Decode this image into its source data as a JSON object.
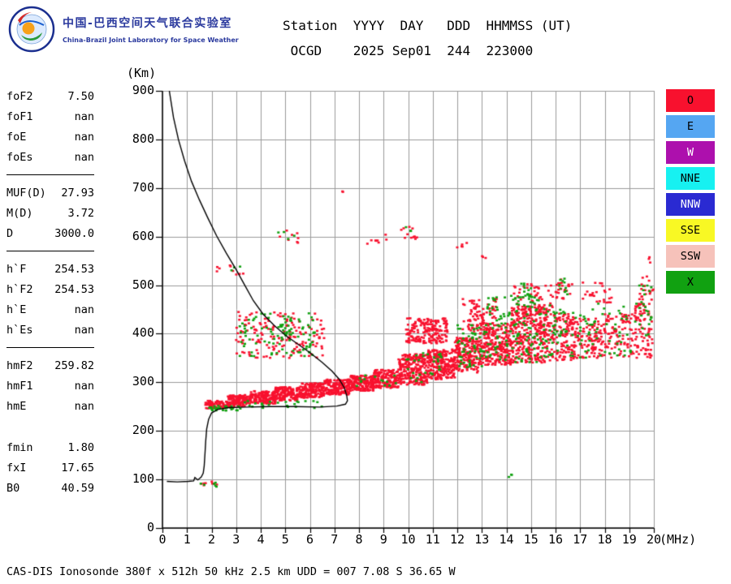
{
  "header": {
    "logo": {
      "title_cn": "中国-巴西空间天气联合实验室",
      "subtitle_en": "China-Brazil Joint Laboratory for Space Weather"
    },
    "station_line1": "Station  YYYY  DAY   DDD  HHMMSS (UT)",
    "station_line2": " OCGD    2025 Sep01  244  223000"
  },
  "params": {
    "groups": [
      {
        "divider_before": false,
        "rows": [
          {
            "label": "foF2",
            "value": "7.50"
          },
          {
            "label": "foF1",
            "value": "nan"
          },
          {
            "label": "foE",
            "value": "nan"
          },
          {
            "label": "foEs",
            "value": "nan"
          }
        ]
      },
      {
        "divider_before": true,
        "rows": [
          {
            "label": "MUF(D)",
            "value": "27.93"
          },
          {
            "label": "M(D)",
            "value": "3.72"
          },
          {
            "label": "D",
            "value": "3000.0"
          }
        ]
      },
      {
        "divider_before": true,
        "rows": [
          {
            "label": "h`F",
            "value": "254.53"
          },
          {
            "label": "h`F2",
            "value": "254.53"
          },
          {
            "label": "h`E",
            "value": "nan"
          },
          {
            "label": "h`Es",
            "value": "nan"
          }
        ]
      },
      {
        "divider_before": true,
        "rows": [
          {
            "label": "hmF2",
            "value": "259.82"
          },
          {
            "label": "hmF1",
            "value": "nan"
          },
          {
            "label": "hmE",
            "value": "nan"
          }
        ]
      },
      {
        "divider_before": false,
        "rows": [
          {
            "label": "fmin",
            "value": "1.80"
          },
          {
            "label": "fxI",
            "value": "17.65"
          },
          {
            "label": "B0",
            "value": "40.59"
          }
        ]
      }
    ]
  },
  "legend": {
    "items": [
      {
        "label": "O",
        "color": "#f8112e",
        "text_color": "#000000"
      },
      {
        "label": "E",
        "color": "#55a6f2",
        "text_color": "#000000"
      },
      {
        "label": "W",
        "color": "#ad10ad",
        "text_color": "#ffffff"
      },
      {
        "label": "NNE",
        "color": "#17f1f1",
        "text_color": "#000000"
      },
      {
        "label": "NNW",
        "color": "#2a2ad2",
        "text_color": "#ffffff"
      },
      {
        "label": "SSE",
        "color": "#f8f824",
        "text_color": "#000000"
      },
      {
        "label": "SSW",
        "color": "#f6c2ba",
        "text_color": "#000000"
      },
      {
        "label": "X",
        "color": "#11a111",
        "text_color": "#000000"
      }
    ]
  },
  "chart_data": {
    "type": "scatter",
    "xlabel": "(MHz)",
    "ylabel": "(Km)",
    "xlim": [
      0,
      20
    ],
    "ylim": [
      0,
      900
    ],
    "x_ticks": [
      0,
      1,
      2,
      3,
      4,
      5,
      6,
      7,
      8,
      9,
      10,
      11,
      12,
      13,
      14,
      15,
      16,
      17,
      18,
      19,
      20
    ],
    "y_ticks": [
      0,
      100,
      200,
      300,
      400,
      500,
      600,
      700,
      800,
      900
    ],
    "grid": true,
    "grid_color": "#9a9a9a",
    "cluster_format": "[f_min_MHz, f_max_MHz, h_min_km, h_max_km, point_count]",
    "series": [
      {
        "name": "O-mode echoes",
        "color": "#f8112e",
        "point_clusters": [
          [
            1.75,
            2.6,
            246,
            262,
            70
          ],
          [
            2.6,
            3.6,
            250,
            274,
            130
          ],
          [
            3.6,
            4.6,
            256,
            282,
            150
          ],
          [
            4.6,
            5.6,
            262,
            290,
            150
          ],
          [
            5.6,
            6.6,
            268,
            298,
            160
          ],
          [
            6.6,
            7.6,
            274,
            306,
            170
          ],
          [
            7.6,
            8.6,
            282,
            314,
            170
          ],
          [
            8.6,
            9.6,
            288,
            326,
            160
          ],
          [
            9.6,
            10.8,
            295,
            358,
            260
          ],
          [
            10.8,
            11.9,
            305,
            368,
            240
          ],
          [
            11.9,
            12.9,
            320,
            392,
            200
          ],
          [
            12.9,
            14.2,
            335,
            422,
            260
          ],
          [
            14.2,
            15.6,
            340,
            455,
            280
          ],
          [
            15.6,
            16.8,
            345,
            442,
            160
          ],
          [
            16.8,
            18.0,
            350,
            432,
            110
          ],
          [
            18.0,
            19.2,
            350,
            442,
            90
          ],
          [
            19.2,
            20.0,
            350,
            462,
            80
          ],
          [
            3.0,
            6.6,
            350,
            445,
            160
          ],
          [
            9.9,
            11.6,
            380,
            432,
            180
          ],
          [
            12.2,
            13.6,
            400,
            472,
            90
          ],
          [
            14.3,
            15.9,
            440,
            502,
            70
          ],
          [
            16.0,
            16.7,
            470,
            515,
            25
          ],
          [
            17.1,
            18.3,
            462,
            506,
            28
          ],
          [
            19.4,
            20.0,
            438,
            522,
            25
          ],
          [
            9.7,
            10.6,
            595,
            625,
            12
          ],
          [
            8.0,
            9.4,
            585,
            607,
            8
          ],
          [
            4.7,
            5.6,
            585,
            615,
            8
          ],
          [
            2.7,
            3.3,
            515,
            545,
            6
          ],
          [
            7.15,
            7.35,
            685,
            697,
            2
          ],
          [
            1.5,
            2.3,
            84,
            98,
            8
          ],
          [
            19.5,
            19.9,
            540,
            560,
            3
          ],
          [
            2.2,
            2.5,
            525,
            540,
            3
          ],
          [
            11.9,
            12.4,
            575,
            600,
            5
          ],
          [
            12.9,
            13.3,
            550,
            566,
            3
          ]
        ]
      },
      {
        "name": "X-mode echoes",
        "color": "#11a111",
        "point_clusters": [
          [
            1.9,
            3.2,
            242,
            252,
            30
          ],
          [
            3.2,
            6.5,
            247,
            262,
            25
          ],
          [
            3.1,
            6.3,
            352,
            442,
            90
          ],
          [
            4.8,
            5.3,
            398,
            422,
            14
          ],
          [
            12.0,
            13.2,
            330,
            420,
            60
          ],
          [
            13.2,
            15.8,
            340,
            482,
            140
          ],
          [
            15.8,
            17.5,
            350,
            452,
            55
          ],
          [
            17.5,
            20.0,
            353,
            462,
            50
          ],
          [
            14.3,
            15.2,
            455,
            505,
            22
          ],
          [
            16.1,
            16.5,
            480,
            515,
            10
          ],
          [
            19.4,
            19.9,
            430,
            500,
            12
          ],
          [
            14.1,
            14.35,
            98,
            112,
            3
          ],
          [
            1.5,
            2.2,
            84,
            96,
            6
          ],
          [
            9.9,
            11.4,
            300,
            360,
            30
          ],
          [
            7.8,
            9.5,
            290,
            316,
            14
          ],
          [
            4.6,
            5.4,
            588,
            612,
            4
          ],
          [
            9.8,
            10.4,
            600,
            622,
            3
          ],
          [
            2.75,
            3.2,
            520,
            542,
            3
          ]
        ]
      }
    ],
    "profile_line": {
      "name": "electron-density-profile",
      "color": "#000000",
      "points": [
        [
          0.28,
          900
        ],
        [
          0.45,
          845
        ],
        [
          0.65,
          800
        ],
        [
          0.9,
          756
        ],
        [
          1.18,
          714
        ],
        [
          1.5,
          676
        ],
        [
          1.85,
          638
        ],
        [
          2.2,
          602
        ],
        [
          2.6,
          566
        ],
        [
          3.0,
          532
        ],
        [
          3.35,
          500
        ],
        [
          3.7,
          468
        ],
        [
          4.1,
          440
        ],
        [
          4.55,
          417
        ],
        [
          5.0,
          397
        ],
        [
          5.5,
          379
        ],
        [
          6.0,
          361
        ],
        [
          6.5,
          341
        ],
        [
          6.9,
          323
        ],
        [
          7.2,
          306
        ],
        [
          7.4,
          289
        ],
        [
          7.5,
          273
        ],
        [
          7.53,
          262
        ],
        [
          7.45,
          255
        ],
        [
          7.1,
          251
        ],
        [
          6.4,
          249
        ],
        [
          5.4,
          250
        ],
        [
          4.4,
          250
        ],
        [
          3.4,
          249
        ],
        [
          2.7,
          248
        ],
        [
          2.25,
          244
        ],
        [
          2.0,
          237
        ],
        [
          1.88,
          224
        ],
        [
          1.8,
          204
        ],
        [
          1.76,
          178
        ],
        [
          1.73,
          152
        ],
        [
          1.7,
          128
        ],
        [
          1.66,
          113
        ],
        [
          1.58,
          105
        ],
        [
          1.44,
          99
        ],
        [
          1.32,
          104
        ],
        [
          1.27,
          97
        ],
        [
          1.05,
          96
        ],
        [
          0.6,
          95
        ],
        [
          0.18,
          96
        ]
      ]
    }
  },
  "footer": {
    "text": "CAS-DIS Ionosonde 380f x 512h 50 kHz 2.5 km UDD = 007 7.08 S 36.65 W"
  }
}
